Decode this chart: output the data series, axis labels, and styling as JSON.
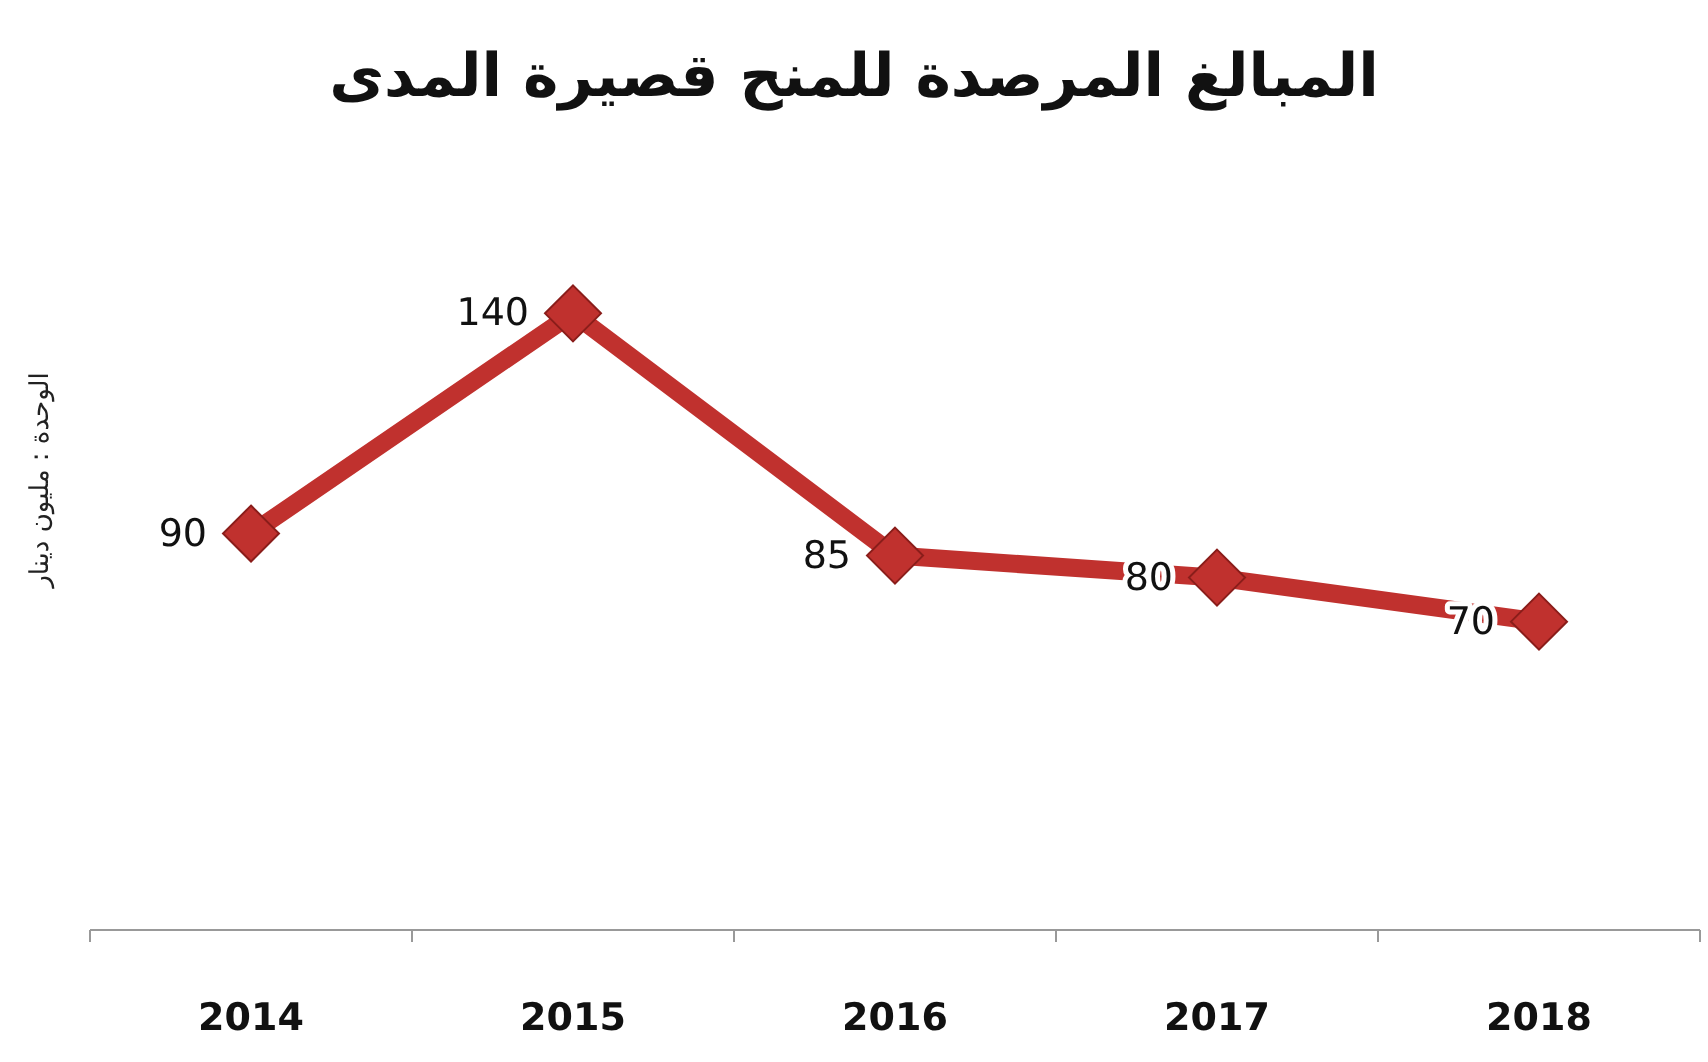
{
  "chart_data": {
    "type": "line",
    "title": "المبالغ المرصدة للمنح قصيرة المدى",
    "ylabel": "الوحدة : مليون دينار",
    "categories": [
      "2014",
      "2015",
      "2016",
      "2017",
      "2018"
    ],
    "series": [
      {
        "color": "#c0312e",
        "values": [
          90,
          140,
          85,
          80,
          70
        ]
      }
    ],
    "data_labels": true,
    "marker": "diamond",
    "line_style": "solid"
  }
}
